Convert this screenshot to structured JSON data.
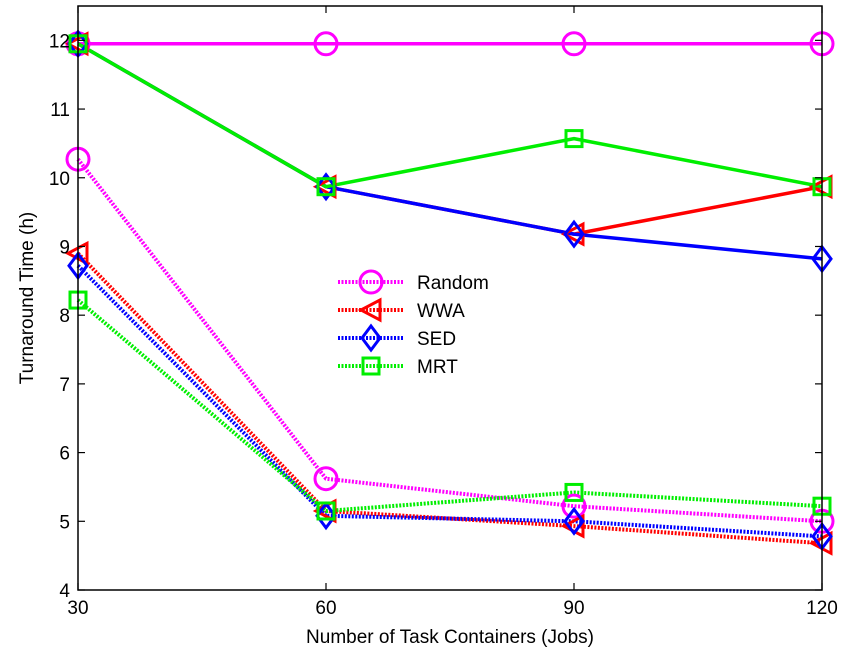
{
  "chart_data": {
    "type": "line",
    "title": "",
    "xlabel": "Number of Task Containers (Jobs)",
    "ylabel": "Turnaround Time (h)",
    "x": [
      30,
      60,
      90,
      120
    ],
    "xlim": [
      30,
      120
    ],
    "ylim": [
      4,
      12.5
    ],
    "xticks": [
      "30",
      "60",
      "90",
      "120"
    ],
    "yticks": [
      "4",
      "5",
      "6",
      "7",
      "8",
      "9",
      "10",
      "11",
      "12"
    ],
    "grid": false,
    "legend_position": "center",
    "colors": {
      "Random": "#ff00ff",
      "WWA": "#ff0000",
      "SED": "#0000ff",
      "MRT": "#00ee00"
    },
    "series": [
      {
        "name": "",
        "group": "Random",
        "line_style": "solid",
        "marker": "circle",
        "values": [
          11.95,
          11.95,
          11.95,
          11.95
        ]
      },
      {
        "name": "",
        "group": "WWA",
        "line_style": "solid",
        "marker": "triangle-left",
        "values": [
          11.95,
          9.87,
          9.18,
          9.87
        ]
      },
      {
        "name": "",
        "group": "SED",
        "line_style": "solid",
        "marker": "diamond",
        "values": [
          11.95,
          9.87,
          9.18,
          8.82
        ]
      },
      {
        "name": "",
        "group": "MRT",
        "line_style": "solid",
        "marker": "square",
        "values": [
          11.95,
          9.87,
          10.57,
          9.87
        ]
      },
      {
        "name": "Random",
        "group": "Random",
        "line_style": "dotted",
        "marker": "circle",
        "values": [
          10.27,
          5.62,
          5.22,
          5.0
        ]
      },
      {
        "name": "WWA",
        "group": "WWA",
        "line_style": "dotted",
        "marker": "triangle-left",
        "values": [
          8.9,
          5.15,
          4.93,
          4.68
        ]
      },
      {
        "name": "SED",
        "group": "SED",
        "line_style": "dotted",
        "marker": "diamond",
        "values": [
          8.72,
          5.08,
          5.0,
          4.78
        ]
      },
      {
        "name": "MRT",
        "group": "MRT",
        "line_style": "dotted",
        "marker": "square",
        "values": [
          8.22,
          5.15,
          5.42,
          5.22
        ]
      }
    ]
  }
}
